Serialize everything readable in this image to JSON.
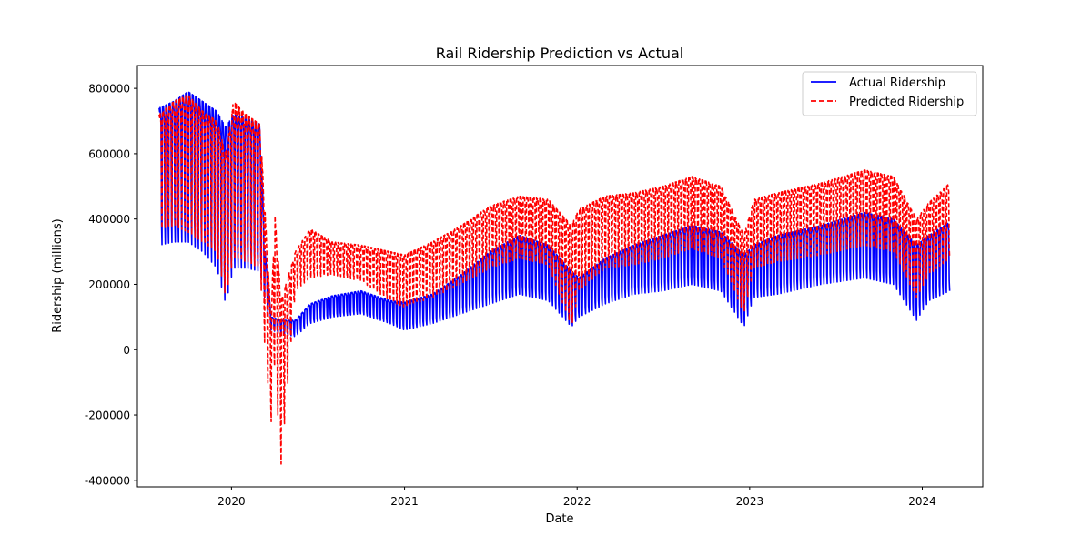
{
  "chart_data": {
    "type": "line",
    "title": "Rail Ridership Prediction vs Actual",
    "xlabel": "Date",
    "ylabel": "Ridership (millions)",
    "xlim": [
      "2019-06-16",
      "2024-05-08"
    ],
    "ylim": [
      -420000,
      870000
    ],
    "x_ticks": [
      "2020",
      "2021",
      "2022",
      "2023",
      "2024"
    ],
    "y_ticks": [
      -400000,
      -200000,
      0,
      200000,
      400000,
      600000,
      800000
    ],
    "grid": false,
    "legend_position": "top-right",
    "series": [
      {
        "name": "Actual Ridership",
        "color": "#0000ff",
        "style": "solid",
        "high": [
          [
            "2019-08-01",
            740000
          ],
          [
            "2019-09-01",
            760000
          ],
          [
            "2019-10-01",
            790000
          ],
          [
            "2019-11-01",
            760000
          ],
          [
            "2019-12-01",
            730000
          ],
          [
            "2019-12-20",
            680000
          ],
          [
            "2020-01-05",
            720000
          ],
          [
            "2020-02-01",
            710000
          ],
          [
            "2020-03-01",
            690000
          ],
          [
            "2020-03-12",
            300000
          ],
          [
            "2020-03-25",
            100000
          ],
          [
            "2020-04-15",
            90000
          ],
          [
            "2020-05-15",
            90000
          ],
          [
            "2020-06-15",
            140000
          ],
          [
            "2020-08-01",
            165000
          ],
          [
            "2020-10-01",
            180000
          ],
          [
            "2020-12-01",
            150000
          ],
          [
            "2021-01-01",
            145000
          ],
          [
            "2021-03-01",
            170000
          ],
          [
            "2021-05-01",
            230000
          ],
          [
            "2021-07-01",
            300000
          ],
          [
            "2021-09-01",
            350000
          ],
          [
            "2021-11-01",
            320000
          ],
          [
            "2021-12-20",
            240000
          ],
          [
            "2022-01-05",
            220000
          ],
          [
            "2022-03-01",
            280000
          ],
          [
            "2022-05-01",
            320000
          ],
          [
            "2022-07-01",
            350000
          ],
          [
            "2022-09-01",
            380000
          ],
          [
            "2022-11-01",
            360000
          ],
          [
            "2022-12-20",
            290000
          ],
          [
            "2023-01-10",
            320000
          ],
          [
            "2023-03-01",
            350000
          ],
          [
            "2023-06-01",
            380000
          ],
          [
            "2023-09-01",
            420000
          ],
          [
            "2023-11-01",
            400000
          ],
          [
            "2023-12-20",
            320000
          ],
          [
            "2024-01-15",
            350000
          ],
          [
            "2024-02-28",
            390000
          ]
        ],
        "low": [
          [
            "2019-08-01",
            320000
          ],
          [
            "2019-09-01",
            330000
          ],
          [
            "2019-10-01",
            330000
          ],
          [
            "2019-11-01",
            300000
          ],
          [
            "2019-12-01",
            250000
          ],
          [
            "2019-12-20",
            140000
          ],
          [
            "2020-01-05",
            250000
          ],
          [
            "2020-02-01",
            250000
          ],
          [
            "2020-03-01",
            240000
          ],
          [
            "2020-03-12",
            150000
          ],
          [
            "2020-03-25",
            60000
          ],
          [
            "2020-04-15",
            50000
          ],
          [
            "2020-05-15",
            40000
          ],
          [
            "2020-06-15",
            80000
          ],
          [
            "2020-08-01",
            100000
          ],
          [
            "2020-10-01",
            110000
          ],
          [
            "2020-12-01",
            80000
          ],
          [
            "2021-01-01",
            60000
          ],
          [
            "2021-03-01",
            80000
          ],
          [
            "2021-05-01",
            110000
          ],
          [
            "2021-07-01",
            140000
          ],
          [
            "2021-09-01",
            170000
          ],
          [
            "2021-11-01",
            150000
          ],
          [
            "2021-12-20",
            70000
          ],
          [
            "2022-01-05",
            100000
          ],
          [
            "2022-03-01",
            140000
          ],
          [
            "2022-05-01",
            170000
          ],
          [
            "2022-07-01",
            180000
          ],
          [
            "2022-09-01",
            200000
          ],
          [
            "2022-11-01",
            180000
          ],
          [
            "2022-12-20",
            70000
          ],
          [
            "2023-01-10",
            160000
          ],
          [
            "2023-03-01",
            170000
          ],
          [
            "2023-06-01",
            200000
          ],
          [
            "2023-09-01",
            220000
          ],
          [
            "2023-11-01",
            200000
          ],
          [
            "2023-12-20",
            90000
          ],
          [
            "2024-01-15",
            150000
          ],
          [
            "2024-02-28",
            180000
          ]
        ]
      },
      {
        "name": "Predicted Ridership",
        "color": "#ff0000",
        "style": "dashed",
        "high": [
          [
            "2019-08-01",
            720000
          ],
          [
            "2019-09-01",
            760000
          ],
          [
            "2019-10-01",
            780000
          ],
          [
            "2019-11-01",
            730000
          ],
          [
            "2019-12-01",
            700000
          ],
          [
            "2019-12-20",
            600000
          ],
          [
            "2020-01-05",
            760000
          ],
          [
            "2020-02-01",
            720000
          ],
          [
            "2020-03-01",
            690000
          ],
          [
            "2020-03-12",
            420000
          ],
          [
            "2020-03-25",
            80000
          ],
          [
            "2020-04-01",
            430000
          ],
          [
            "2020-04-15",
            150000
          ],
          [
            "2020-05-15",
            300000
          ],
          [
            "2020-06-15",
            370000
          ],
          [
            "2020-08-01",
            330000
          ],
          [
            "2020-10-01",
            320000
          ],
          [
            "2020-12-01",
            300000
          ],
          [
            "2021-01-01",
            290000
          ],
          [
            "2021-03-01",
            330000
          ],
          [
            "2021-05-01",
            380000
          ],
          [
            "2021-07-01",
            440000
          ],
          [
            "2021-09-01",
            470000
          ],
          [
            "2021-11-01",
            460000
          ],
          [
            "2021-12-20",
            380000
          ],
          [
            "2022-01-05",
            430000
          ],
          [
            "2022-03-01",
            470000
          ],
          [
            "2022-05-01",
            480000
          ],
          [
            "2022-07-01",
            500000
          ],
          [
            "2022-09-01",
            530000
          ],
          [
            "2022-11-01",
            500000
          ],
          [
            "2022-12-20",
            350000
          ],
          [
            "2023-01-10",
            460000
          ],
          [
            "2023-03-01",
            480000
          ],
          [
            "2023-06-01",
            510000
          ],
          [
            "2023-09-01",
            550000
          ],
          [
            "2023-11-01",
            530000
          ],
          [
            "2023-12-20",
            400000
          ],
          [
            "2024-01-15",
            450000
          ],
          [
            "2024-02-28",
            510000
          ]
        ],
        "low": [
          [
            "2019-08-01",
            370000
          ],
          [
            "2019-09-01",
            380000
          ],
          [
            "2019-10-01",
            360000
          ],
          [
            "2019-11-01",
            330000
          ],
          [
            "2019-12-01",
            300000
          ],
          [
            "2019-12-20",
            160000
          ],
          [
            "2020-01-05",
            280000
          ],
          [
            "2020-02-01",
            270000
          ],
          [
            "2020-03-01",
            250000
          ],
          [
            "2020-03-12",
            0
          ],
          [
            "2020-03-25",
            -220000
          ],
          [
            "2020-04-01",
            -50000
          ],
          [
            "2020-04-15",
            -350000
          ],
          [
            "2020-05-15",
            180000
          ],
          [
            "2020-06-15",
            220000
          ],
          [
            "2020-08-01",
            230000
          ],
          [
            "2020-10-01",
            210000
          ],
          [
            "2020-12-01",
            150000
          ],
          [
            "2021-01-01",
            130000
          ],
          [
            "2021-03-01",
            160000
          ],
          [
            "2021-05-01",
            200000
          ],
          [
            "2021-07-01",
            250000
          ],
          [
            "2021-09-01",
            280000
          ],
          [
            "2021-11-01",
            260000
          ],
          [
            "2021-12-20",
            70000
          ],
          [
            "2022-01-05",
            180000
          ],
          [
            "2022-03-01",
            250000
          ],
          [
            "2022-05-01",
            260000
          ],
          [
            "2022-07-01",
            280000
          ],
          [
            "2022-09-01",
            310000
          ],
          [
            "2022-11-01",
            280000
          ],
          [
            "2022-12-20",
            110000
          ],
          [
            "2023-01-10",
            250000
          ],
          [
            "2023-03-01",
            270000
          ],
          [
            "2023-06-01",
            290000
          ],
          [
            "2023-09-01",
            320000
          ],
          [
            "2023-11-01",
            300000
          ],
          [
            "2023-12-20",
            160000
          ],
          [
            "2024-01-15",
            230000
          ],
          [
            "2024-02-28",
            280000
          ]
        ]
      }
    ]
  }
}
